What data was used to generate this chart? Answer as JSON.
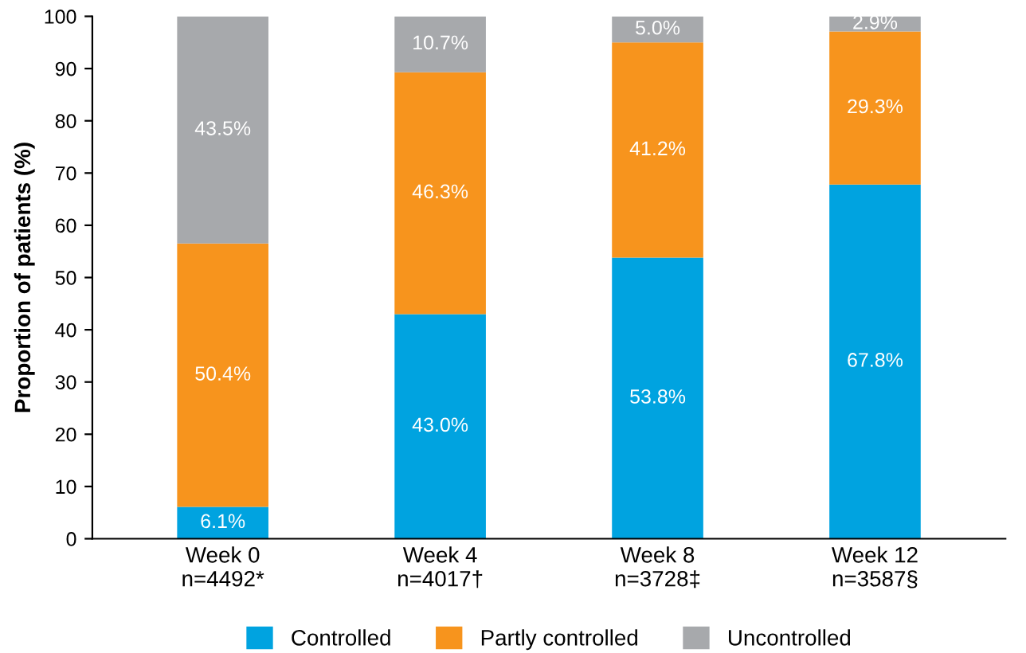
{
  "chart_data": {
    "type": "bar",
    "stacked": true,
    "ylabel": "Proportion of patients (%)",
    "categories": [
      "Week 0\nn=4492*",
      "Week 4\nn=4017†",
      "Week 8\nn=3728‡",
      "Week 12\nn=3587§"
    ],
    "series": [
      {
        "name": "Controlled",
        "color": "#00a3e0",
        "values": [
          6.1,
          43.0,
          53.8,
          67.8
        ],
        "value_labels": [
          "6.1%",
          "43.0%",
          "53.8%",
          "67.8%"
        ]
      },
      {
        "name": "Partly controlled",
        "color": "#f7941d",
        "values": [
          50.4,
          46.3,
          41.2,
          29.3
        ],
        "value_labels": [
          "50.4%",
          "46.3%",
          "41.2%",
          "29.3%"
        ]
      },
      {
        "name": "Uncontrolled",
        "color": "#a7a9ac",
        "values": [
          43.5,
          10.7,
          5.0,
          2.9
        ],
        "value_labels": [
          "43.5%",
          "10.7%",
          "5.0%",
          "2.9%"
        ]
      }
    ],
    "ylim": [
      0,
      100
    ],
    "yticks": [
      0,
      10,
      20,
      30,
      40,
      50,
      60,
      70,
      80,
      90,
      100
    ],
    "grid": false,
    "legend": "bottom"
  }
}
